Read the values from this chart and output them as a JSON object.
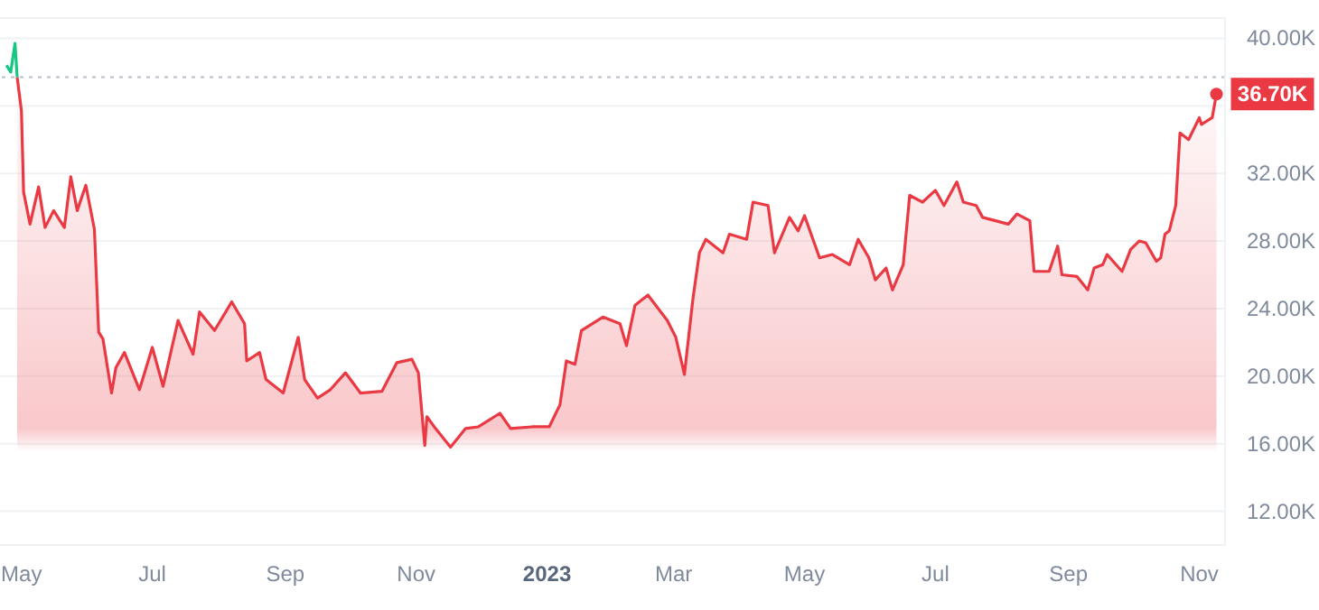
{
  "chart_data": {
    "type": "area",
    "x": [
      "2022-04-29",
      "2022-05-01",
      "2022-05-02",
      "2022-05-05",
      "2022-05-09",
      "2022-05-12",
      "2022-05-16",
      "2022-05-21",
      "2022-05-24",
      "2022-05-27",
      "2022-05-31",
      "2022-06-04",
      "2022-06-06",
      "2022-06-08",
      "2022-06-12",
      "2022-06-14",
      "2022-06-18",
      "2022-06-25",
      "2022-07-01",
      "2022-07-06",
      "2022-07-13",
      "2022-07-20",
      "2022-07-23",
      "2022-07-30",
      "2022-08-07",
      "2022-08-13",
      "2022-08-14",
      "2022-08-20",
      "2022-08-23",
      "2022-08-31",
      "2022-09-07",
      "2022-09-10",
      "2022-09-16",
      "2022-09-22",
      "2022-09-29",
      "2022-10-06",
      "2022-10-16",
      "2022-10-23",
      "2022-10-30",
      "2022-11-02",
      "2022-11-05",
      "2022-11-06",
      "2022-11-10",
      "2022-11-17",
      "2022-11-24",
      "2022-11-30",
      "2022-12-10",
      "2022-12-15",
      "2022-12-25",
      "2023-01-02",
      "2023-01-07",
      "2023-01-10",
      "2023-01-14",
      "2023-01-17",
      "2023-01-27",
      "2023-02-04",
      "2023-02-07",
      "2023-02-11",
      "2023-02-17",
      "2023-02-26",
      "2023-03-02",
      "2023-03-06",
      "2023-03-10",
      "2023-03-13",
      "2023-03-16",
      "2023-03-24",
      "2023-03-27",
      "2023-04-04",
      "2023-04-07",
      "2023-04-14",
      "2023-04-17",
      "2023-04-24",
      "2023-04-28",
      "2023-05-01",
      "2023-05-08",
      "2023-05-14",
      "2023-05-22",
      "2023-05-26",
      "2023-05-31",
      "2023-06-03",
      "2023-06-08",
      "2023-06-11",
      "2023-06-16",
      "2023-06-19",
      "2023-06-25",
      "2023-07-01",
      "2023-07-05",
      "2023-07-11",
      "2023-07-14",
      "2023-07-20",
      "2023-07-23",
      "2023-07-29",
      "2023-08-04",
      "2023-08-08",
      "2023-08-14",
      "2023-08-16",
      "2023-08-23",
      "2023-08-27",
      "2023-08-29",
      "2023-09-05",
      "2023-09-10",
      "2023-09-13",
      "2023-09-17",
      "2023-09-19",
      "2023-09-26",
      "2023-09-30",
      "2023-10-04",
      "2023-10-07",
      "2023-10-12",
      "2023-10-14",
      "2023-10-16",
      "2023-10-18",
      "2023-10-21",
      "2023-10-23",
      "2023-10-27",
      "2023-11-01",
      "2023-11-02",
      "2023-11-07",
      "2023-11-09"
    ],
    "series": [
      {
        "type": "line",
        "color": "#16c784",
        "x": [
          "2022-04-24",
          "2022-04-26",
          "2022-04-28",
          "2022-04-29"
        ],
        "values": [
          38.4,
          38.0,
          39.7,
          37.7
        ]
      },
      {
        "color": "#ea3943",
        "values": [
          37.7,
          35.7,
          30.9,
          29.0,
          31.2,
          28.8,
          29.8,
          28.8,
          31.8,
          29.8,
          31.3,
          28.7,
          22.6,
          22.2,
          19.0,
          20.5,
          21.4,
          19.2,
          21.7,
          19.4,
          23.3,
          21.3,
          23.8,
          22.7,
          24.4,
          23.1,
          20.9,
          21.4,
          19.8,
          19.0,
          22.3,
          19.8,
          18.7,
          19.2,
          20.2,
          19.0,
          19.1,
          20.8,
          21.0,
          20.2,
          15.9,
          17.6,
          16.9,
          15.8,
          16.9,
          17.0,
          17.8,
          16.9,
          17.0,
          17.0,
          18.3,
          20.9,
          20.7,
          22.7,
          23.5,
          23.1,
          21.8,
          24.2,
          24.8,
          23.3,
          22.3,
          20.1,
          24.6,
          27.3,
          28.1,
          27.3,
          28.4,
          28.1,
          30.3,
          30.1,
          27.3,
          29.4,
          28.6,
          29.5,
          27.0,
          27.2,
          26.6,
          28.1,
          27.0,
          25.7,
          26.4,
          25.1,
          26.6,
          30.7,
          30.3,
          31.0,
          30.1,
          31.5,
          30.3,
          30.1,
          29.4,
          29.2,
          29.0,
          29.6,
          29.2,
          26.2,
          26.2,
          27.7,
          26.0,
          25.9,
          25.1,
          26.4,
          26.6,
          27.2,
          26.2,
          27.5,
          28.0,
          27.9,
          26.8,
          27.0,
          28.4,
          28.6,
          30.1,
          34.4,
          34.0,
          35.3,
          34.9,
          35.3,
          36.7
        ]
      }
    ],
    "xlim": [
      "2022-04-21",
      "2023-11-13"
    ],
    "xticks": [
      {
        "value": "2022-05-01",
        "label": "May"
      },
      {
        "value": "2022-07-01",
        "label": "Jul"
      },
      {
        "value": "2022-09-01",
        "label": "Sep"
      },
      {
        "value": "2022-11-01",
        "label": "Nov"
      },
      {
        "value": "2023-01-01",
        "label": "2023"
      },
      {
        "value": "2023-03-01",
        "label": "Mar"
      },
      {
        "value": "2023-05-01",
        "label": "May"
      },
      {
        "value": "2023-07-01",
        "label": "Jul"
      },
      {
        "value": "2023-09-01",
        "label": "Sep"
      },
      {
        "value": "2023-11-01",
        "label": "Nov"
      }
    ],
    "ylim": [
      10,
      41.2
    ],
    "yticks": [
      {
        "value": 12,
        "label": "12.00K"
      },
      {
        "value": 16,
        "label": "16.00K"
      },
      {
        "value": 20,
        "label": "20.00K"
      },
      {
        "value": 24,
        "label": "24.00K"
      },
      {
        "value": 28,
        "label": "28.00K"
      },
      {
        "value": 32,
        "label": "32.00K"
      },
      {
        "value": 36,
        "label": null
      },
      {
        "value": 40,
        "label": "40.00K"
      }
    ],
    "ref_lines": [
      {
        "axis": "y",
        "value": 37.7,
        "color": "#b8bec9",
        "line_style": "dotted"
      }
    ],
    "annotations": [
      {
        "text": "36.70K",
        "x": "2023-11-09",
        "y": 36.7
      }
    ],
    "grid": "y"
  }
}
